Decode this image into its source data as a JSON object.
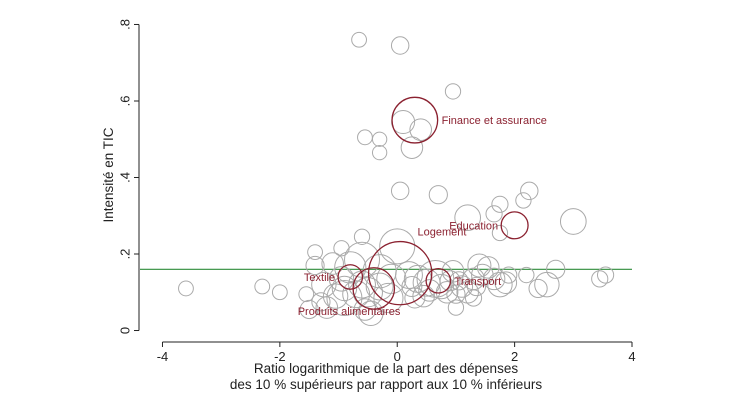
{
  "chart_data": {
    "type": "scatter",
    "title": "",
    "xlabel": "Ratio logarithmique de la part des dépenses des 10 % supérieurs par rapport aux 10 % inférieurs",
    "xlabel_lines": [
      "Ratio logarithmique de la part des dépenses",
      "des 10 % supérieurs par rapport aux 10 % inférieurs"
    ],
    "ylabel": "Intensité en TIC",
    "xlim": [
      -4.4,
      4.0
    ],
    "ylim": [
      -0.03,
      0.83
    ],
    "xticks": [
      -4,
      -2,
      0,
      2,
      4
    ],
    "xtick_labels": [
      "-4",
      "-2",
      "0",
      "2",
      "4"
    ],
    "yticks": [
      0,
      0.2,
      0.4,
      0.6,
      0.8
    ],
    "ytick_labels": [
      "0",
      ".2",
      ".4",
      ".6",
      ".8"
    ],
    "grid": false,
    "colors": {
      "highlight": "#8b2130",
      "points": "#aaaaaa",
      "reference_line": "#2e8b3a",
      "axis": "#222222"
    },
    "reference_line": {
      "y": 0.16
    },
    "highlighted": [
      {
        "label": "Finance et assurance",
        "x": 0.3,
        "y": 0.55,
        "size": 16,
        "label_side": "right"
      },
      {
        "label": "Education",
        "x": 2.0,
        "y": 0.275,
        "size": 5,
        "label_side": "left"
      },
      {
        "label": "Logement",
        "x": 0.05,
        "y": 0.15,
        "size": 32,
        "label_side": "top-right"
      },
      {
        "label": "Textile",
        "x": -0.8,
        "y": 0.14,
        "size": 4,
        "label_side": "left"
      },
      {
        "label": "Transport",
        "x": 0.7,
        "y": 0.13,
        "size": 4,
        "label_side": "right"
      },
      {
        "label": "Produits alimentaires",
        "x": -0.4,
        "y": 0.11,
        "size": 13,
        "label_side": "bottom-left"
      }
    ],
    "points": [
      {
        "x": -0.65,
        "y": 0.76,
        "size": 1.2
      },
      {
        "x": 0.05,
        "y": 0.745,
        "size": 1.8
      },
      {
        "x": 0.95,
        "y": 0.625,
        "size": 1.3
      },
      {
        "x": 0.1,
        "y": 0.545,
        "size": 3.5
      },
      {
        "x": 0.4,
        "y": 0.525,
        "size": 3
      },
      {
        "x": -0.55,
        "y": 0.505,
        "size": 1.2
      },
      {
        "x": 0.25,
        "y": 0.478,
        "size": 3
      },
      {
        "x": -0.3,
        "y": 0.5,
        "size": 1.1
      },
      {
        "x": -0.3,
        "y": 0.465,
        "size": 1.1
      },
      {
        "x": 0.05,
        "y": 0.365,
        "size": 1.8
      },
      {
        "x": 0.7,
        "y": 0.355,
        "size": 2
      },
      {
        "x": 2.25,
        "y": 0.365,
        "size": 1.8
      },
      {
        "x": 1.75,
        "y": 0.33,
        "size": 1.5
      },
      {
        "x": 2.15,
        "y": 0.34,
        "size": 1.3
      },
      {
        "x": 1.2,
        "y": 0.295,
        "size": 4.5
      },
      {
        "x": 1.65,
        "y": 0.305,
        "size": 1.5
      },
      {
        "x": 3.0,
        "y": 0.285,
        "size": 4.5
      },
      {
        "x": 1.75,
        "y": 0.255,
        "size": 1.3
      },
      {
        "x": -1.4,
        "y": 0.205,
        "size": 1.2
      },
      {
        "x": -0.6,
        "y": 0.245,
        "size": 1.3
      },
      {
        "x": -0.95,
        "y": 0.215,
        "size": 1.3
      },
      {
        "x": 0.0,
        "y": 0.22,
        "size": 9
      },
      {
        "x": -0.6,
        "y": 0.185,
        "size": 9
      },
      {
        "x": -0.8,
        "y": 0.165,
        "size": 7
      },
      {
        "x": -0.3,
        "y": 0.155,
        "size": 8
      },
      {
        "x": -1.1,
        "y": 0.175,
        "size": 3
      },
      {
        "x": -0.95,
        "y": 0.135,
        "size": 4
      },
      {
        "x": -0.9,
        "y": 0.11,
        "size": 4
      },
      {
        "x": -1.05,
        "y": 0.09,
        "size": 4
      },
      {
        "x": -1.25,
        "y": 0.12,
        "size": 4
      },
      {
        "x": -0.9,
        "y": 0.085,
        "size": 9
      },
      {
        "x": -0.7,
        "y": 0.095,
        "size": 5
      },
      {
        "x": -0.6,
        "y": 0.12,
        "size": 5
      },
      {
        "x": -0.5,
        "y": 0.1,
        "size": 6
      },
      {
        "x": -0.3,
        "y": 0.115,
        "size": 5
      },
      {
        "x": -0.15,
        "y": 0.085,
        "size": 6
      },
      {
        "x": -0.55,
        "y": 0.055,
        "size": 3
      },
      {
        "x": -0.45,
        "y": 0.045,
        "size": 4
      },
      {
        "x": -1.5,
        "y": 0.055,
        "size": 2
      },
      {
        "x": -1.2,
        "y": 0.06,
        "size": 3
      },
      {
        "x": -1.3,
        "y": 0.075,
        "size": 2
      },
      {
        "x": -1.4,
        "y": 0.17,
        "size": 2
      },
      {
        "x": -2.3,
        "y": 0.115,
        "size": 1.2
      },
      {
        "x": -2.0,
        "y": 0.1,
        "size": 1.2
      },
      {
        "x": -1.55,
        "y": 0.095,
        "size": 1.2
      },
      {
        "x": -0.1,
        "y": 0.135,
        "size": 6
      },
      {
        "x": 0.2,
        "y": 0.145,
        "size": 5
      },
      {
        "x": 0.35,
        "y": 0.135,
        "size": 5
      },
      {
        "x": 0.5,
        "y": 0.125,
        "size": 5
      },
      {
        "x": 0.55,
        "y": 0.105,
        "size": 3
      },
      {
        "x": 0.65,
        "y": 0.135,
        "size": 10
      },
      {
        "x": 0.75,
        "y": 0.115,
        "size": 4
      },
      {
        "x": 0.85,
        "y": 0.1,
        "size": 3
      },
      {
        "x": 0.45,
        "y": 0.09,
        "size": 3
      },
      {
        "x": 0.3,
        "y": 0.085,
        "size": 2.5
      },
      {
        "x": 0.25,
        "y": 0.115,
        "size": 2.5
      },
      {
        "x": 0.95,
        "y": 0.155,
        "size": 3
      },
      {
        "x": 0.9,
        "y": 0.13,
        "size": 2.5
      },
      {
        "x": 1.0,
        "y": 0.095,
        "size": 2
      },
      {
        "x": 1.05,
        "y": 0.13,
        "size": 2
      },
      {
        "x": 1.1,
        "y": 0.115,
        "size": 3
      },
      {
        "x": 1.2,
        "y": 0.1,
        "size": 3
      },
      {
        "x": 1.3,
        "y": 0.135,
        "size": 3
      },
      {
        "x": 1.35,
        "y": 0.115,
        "size": 2
      },
      {
        "x": 1.45,
        "y": 0.145,
        "size": 3
      },
      {
        "x": 1.4,
        "y": 0.17,
        "size": 3.5
      },
      {
        "x": 1.55,
        "y": 0.165,
        "size": 3
      },
      {
        "x": 1.65,
        "y": 0.135,
        "size": 3
      },
      {
        "x": 1.75,
        "y": 0.12,
        "size": 4
      },
      {
        "x": 1.85,
        "y": 0.125,
        "size": 3
      },
      {
        "x": 1.9,
        "y": 0.145,
        "size": 1.5
      },
      {
        "x": 1.3,
        "y": 0.085,
        "size": 1.5
      },
      {
        "x": 2.2,
        "y": 0.145,
        "size": 1.3
      },
      {
        "x": 2.4,
        "y": 0.11,
        "size": 2
      },
      {
        "x": 2.55,
        "y": 0.12,
        "size": 4
      },
      {
        "x": 2.7,
        "y": 0.16,
        "size": 2
      },
      {
        "x": 3.45,
        "y": 0.135,
        "size": 1.5
      },
      {
        "x": 3.55,
        "y": 0.145,
        "size": 1.5
      },
      {
        "x": 1.0,
        "y": 0.06,
        "size": 1.3
      },
      {
        "x": -3.6,
        "y": 0.11,
        "size": 1.2
      }
    ]
  }
}
